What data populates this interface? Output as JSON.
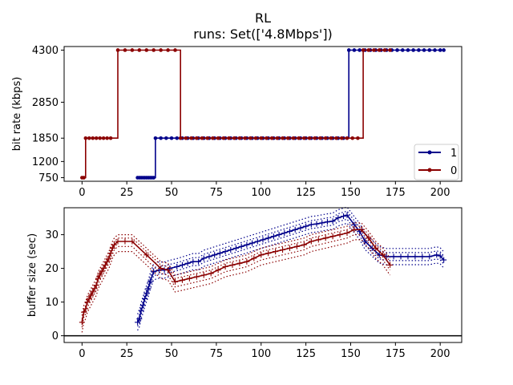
{
  "chart_data": [
    {
      "type": "line",
      "title": "RL",
      "subtitle": "runs: Set(['4.8Mbps'])",
      "xlabel": "",
      "ylabel": "bit rate (kbps)",
      "xlim": [
        -10,
        212
      ],
      "ylim": [
        650,
        4400
      ],
      "x_ticks": [
        0,
        25,
        50,
        75,
        100,
        125,
        150,
        175,
        200
      ],
      "y_ticks": [
        750,
        1200,
        1850,
        2850,
        4300
      ],
      "step": true,
      "legend": "bottom-right",
      "series": [
        {
          "name": "1",
          "color": "#00008b",
          "marker": "dot",
          "x": [
            31,
            32,
            33,
            34,
            35,
            36,
            37,
            38,
            39,
            40,
            41,
            44,
            47,
            50,
            53,
            56,
            59,
            62,
            65,
            68,
            71,
            74,
            77,
            80,
            83,
            86,
            89,
            92,
            95,
            98,
            101,
            104,
            107,
            110,
            113,
            116,
            119,
            122,
            125,
            128,
            131,
            134,
            137,
            140,
            143,
            146,
            149,
            152,
            155,
            158,
            161,
            164,
            167,
            170,
            173,
            176,
            179,
            182,
            185,
            188,
            191,
            194,
            197,
            200,
            202
          ],
          "y": [
            750,
            750,
            750,
            750,
            750,
            750,
            750,
            750,
            750,
            750,
            1850,
            1850,
            1850,
            1850,
            1850,
            1850,
            1850,
            1850,
            1850,
            1850,
            1850,
            1850,
            1850,
            1850,
            1850,
            1850,
            1850,
            1850,
            1850,
            1850,
            1850,
            1850,
            1850,
            1850,
            1850,
            1850,
            1850,
            1850,
            1850,
            1850,
            1850,
            1850,
            1850,
            1850,
            1850,
            1850,
            4300,
            4300,
            4300,
            4300,
            4300,
            4300,
            4300,
            4300,
            4300,
            4300,
            4300,
            4300,
            4300,
            4300,
            4300,
            4300,
            4300,
            4300,
            4300
          ]
        },
        {
          "name": "0",
          "color": "#8b0000",
          "marker": "dot",
          "x": [
            0,
            1,
            2,
            4,
            6,
            8,
            10,
            12,
            14,
            16,
            20,
            24,
            28,
            32,
            36,
            40,
            44,
            48,
            52,
            55,
            58,
            61,
            64,
            67,
            70,
            73,
            76,
            79,
            82,
            85,
            88,
            91,
            94,
            97,
            100,
            103,
            106,
            109,
            112,
            115,
            118,
            121,
            124,
            127,
            130,
            133,
            136,
            139,
            142,
            145,
            148,
            151,
            154,
            157,
            160,
            163,
            166,
            169,
            172
          ],
          "y": [
            750,
            750,
            1850,
            1850,
            1850,
            1850,
            1850,
            1850,
            1850,
            1850,
            4300,
            4300,
            4300,
            4300,
            4300,
            4300,
            4300,
            4300,
            4300,
            1850,
            1850,
            1850,
            1850,
            1850,
            1850,
            1850,
            1850,
            1850,
            1850,
            1850,
            1850,
            1850,
            1850,
            1850,
            1850,
            1850,
            1850,
            1850,
            1850,
            1850,
            1850,
            1850,
            1850,
            1850,
            1850,
            1850,
            1850,
            1850,
            1850,
            1850,
            1850,
            1850,
            1850,
            4300,
            4300,
            4300,
            4300,
            4300,
            4300
          ]
        }
      ]
    },
    {
      "type": "line",
      "title": "",
      "xlabel": "",
      "ylabel": "buffer size (sec)",
      "xlim": [
        -10,
        212
      ],
      "ylim": [
        -2,
        38
      ],
      "x_ticks": [
        0,
        25,
        50,
        75,
        100,
        125,
        150,
        175,
        200
      ],
      "y_ticks": [
        0,
        10,
        20,
        30
      ],
      "hline_y": 0,
      "series": [
        {
          "name": "1",
          "color": "#00008b",
          "marker": "plus",
          "x": [
            31,
            32,
            33,
            34,
            35,
            36,
            37,
            38,
            40,
            43,
            46,
            49,
            53,
            56,
            59,
            62,
            65,
            68,
            71,
            74,
            77,
            80,
            83,
            86,
            89,
            92,
            95,
            98,
            101,
            104,
            107,
            110,
            113,
            116,
            119,
            122,
            125,
            128,
            131,
            134,
            137,
            140,
            143,
            146,
            148,
            152,
            155,
            158,
            162,
            166,
            170,
            174,
            178,
            182,
            186,
            190,
            194,
            198,
            200,
            202
          ],
          "y": [
            4,
            5,
            7.5,
            9,
            11,
            12.5,
            14,
            16,
            19,
            19.5,
            19.5,
            20,
            20.5,
            21,
            21.5,
            22,
            22,
            23,
            23.5,
            24,
            24.5,
            25,
            25.5,
            26,
            26.5,
            27,
            27.5,
            28,
            28.5,
            29,
            29.5,
            30,
            30.5,
            31,
            31.5,
            32,
            32.5,
            33,
            33.2,
            33.5,
            33.8,
            34,
            35,
            35.5,
            35.8,
            33,
            31,
            28,
            26,
            24,
            23.5,
            23.5,
            23.5,
            23.5,
            23.5,
            23.5,
            23.5,
            24,
            23.7,
            22.5
          ]
        },
        {
          "name": "0",
          "color": "#8b0000",
          "marker": "plus",
          "x": [
            0,
            1,
            2,
            3,
            4,
            5,
            6,
            7,
            8,
            9,
            10,
            11,
            12,
            13,
            14,
            15,
            16,
            17,
            18,
            20,
            24,
            28,
            36,
            44,
            48,
            52,
            56,
            60,
            64,
            68,
            72,
            76,
            80,
            84,
            88,
            92,
            96,
            100,
            104,
            108,
            112,
            116,
            120,
            124,
            128,
            132,
            136,
            140,
            144,
            148,
            152,
            156,
            160,
            164,
            168,
            172
          ],
          "y": [
            4,
            7,
            8,
            10,
            11,
            12,
            13,
            14,
            15,
            17,
            18,
            19,
            20,
            21,
            22,
            23,
            24.5,
            26,
            27,
            28,
            28,
            28,
            24,
            20,
            19.5,
            16,
            16.5,
            17,
            17.5,
            18,
            18.5,
            19.5,
            20.5,
            21,
            21.5,
            22,
            23,
            24,
            24.5,
            25,
            25.5,
            26,
            26.5,
            27,
            28,
            28.5,
            29,
            29.5,
            30,
            30.5,
            31.5,
            31.5,
            29,
            26,
            24,
            21
          ]
        }
      ]
    }
  ],
  "legend": {
    "entries": [
      {
        "label": "1",
        "color": "#00008b"
      },
      {
        "label": "0",
        "color": "#8b0000"
      }
    ]
  }
}
